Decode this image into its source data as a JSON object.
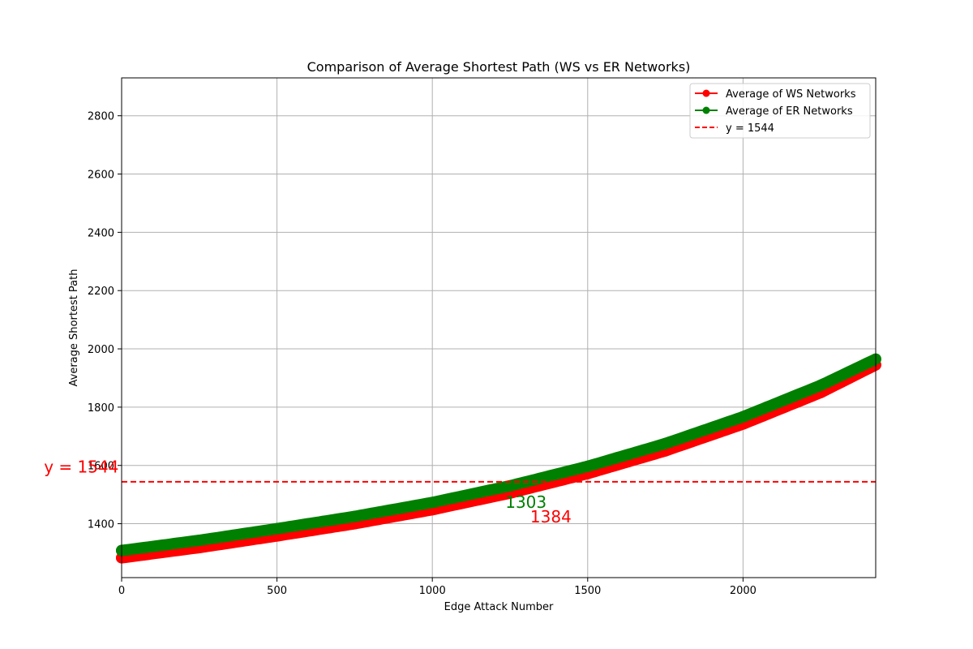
{
  "chart_data": {
    "type": "line",
    "title": "Comparison of Average Shortest Path (WS vs ER Networks)",
    "xlabel": "Edge Attack Number",
    "ylabel": "Average Shortest Path",
    "xlim": [
      0,
      2427
    ],
    "ylim": [
      1215,
      2930
    ],
    "xticks": [
      0,
      500,
      1000,
      1500,
      2000
    ],
    "yticks": [
      1400,
      1600,
      1800,
      2000,
      2200,
      2400,
      2600,
      2800
    ],
    "grid": true,
    "legend_position": "top-right",
    "series": [
      {
        "name": "Average of WS Networks",
        "color": "#ff0000",
        "marker": "o",
        "x": [
          0,
          250,
          500,
          750,
          1000,
          1250,
          1500,
          1750,
          2000,
          2250,
          2427
        ],
        "y": [
          1283,
          1318,
          1358,
          1400,
          1448,
          1505,
          1572,
          1650,
          1742,
          1850,
          1945
        ]
      },
      {
        "name": "Average of ER Networks",
        "color": "#008000",
        "marker": "o",
        "x": [
          0,
          250,
          500,
          750,
          1000,
          1250,
          1500,
          1750,
          2000,
          2250,
          2427
        ],
        "y": [
          1308,
          1343,
          1383,
          1425,
          1473,
          1530,
          1597,
          1675,
          1767,
          1875,
          1965
        ]
      }
    ],
    "reference_line": {
      "label": "y = 1544",
      "y": 1544,
      "color": "#ff0000",
      "style": "dashed"
    },
    "annotations": [
      {
        "text": "y = 1544",
        "x": -250,
        "y": 1575,
        "color": "#ff0000"
      },
      {
        "text": "1303",
        "x": 1235,
        "y": 1455,
        "color": "#008000"
      },
      {
        "text": "1384",
        "x": 1315,
        "y": 1405,
        "color": "#ff0000"
      }
    ]
  }
}
